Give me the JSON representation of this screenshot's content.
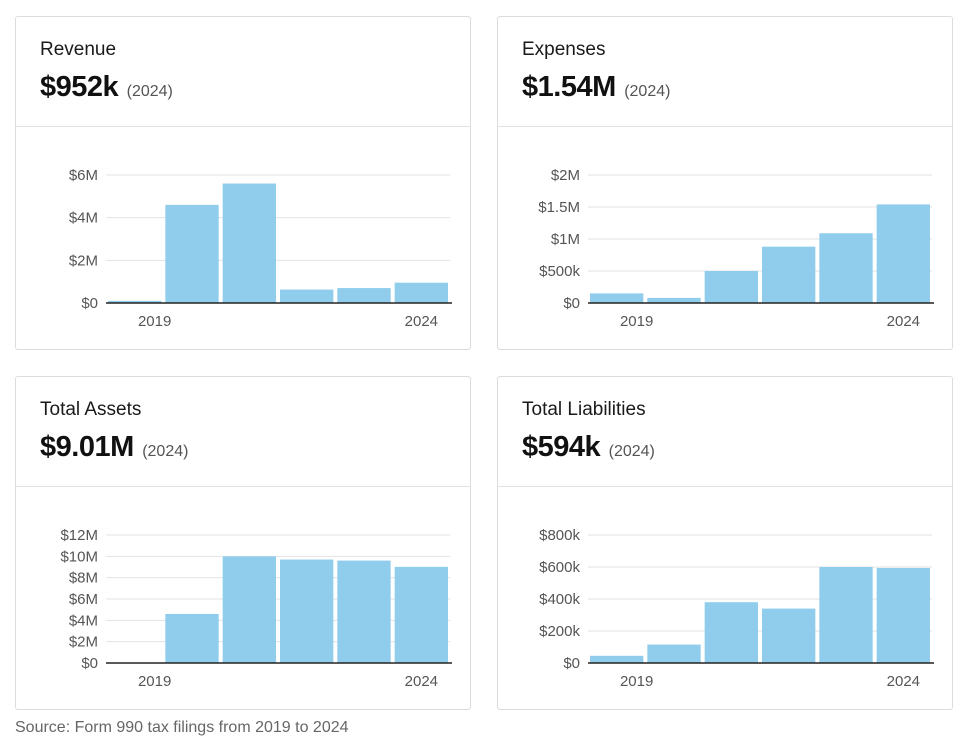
{
  "cards": [
    {
      "title": "Revenue",
      "value": "$952k",
      "year": "(2024)"
    },
    {
      "title": "Expenses",
      "value": "$1.54M",
      "year": "(2024)"
    },
    {
      "title": "Total Assets",
      "value": "$9.01M",
      "year": "(2024)"
    },
    {
      "title": "Total Liabilities",
      "value": "$594k",
      "year": "(2024)"
    }
  ],
  "source": "Source: Form 990 tax filings from 2019 to 2024",
  "colors": {
    "bar": "#90cdec",
    "grid": "#e3e3e3",
    "axis": "#222222",
    "tick": "#555555"
  },
  "chart_data": [
    {
      "type": "bar",
      "title": "Revenue",
      "categories": [
        "2019",
        "2020",
        "2021",
        "2022",
        "2023",
        "2024"
      ],
      "values": [
        100000,
        4600000,
        5600000,
        630000,
        700000,
        952000
      ],
      "ylim": [
        0,
        6000000
      ],
      "yticks": [
        0,
        2000000,
        4000000,
        6000000
      ],
      "ytick_labels": [
        "$0",
        "$2M",
        "$4M",
        "$6M"
      ],
      "xtick_labels": [
        "2019",
        "2024"
      ],
      "grid": true
    },
    {
      "type": "bar",
      "title": "Expenses",
      "categories": [
        "2019",
        "2020",
        "2021",
        "2022",
        "2023",
        "2024"
      ],
      "values": [
        150000,
        80000,
        500000,
        880000,
        1090000,
        1540000
      ],
      "ylim": [
        0,
        2000000
      ],
      "yticks": [
        0,
        500000,
        1000000,
        1500000,
        2000000
      ],
      "ytick_labels": [
        "$0",
        "$500k",
        "$1M",
        "$1.5M",
        "$2M"
      ],
      "xtick_labels": [
        "2019",
        "2024"
      ],
      "grid": true
    },
    {
      "type": "bar",
      "title": "Total Assets",
      "categories": [
        "2019",
        "2020",
        "2021",
        "2022",
        "2023",
        "2024"
      ],
      "values": [
        0,
        4600000,
        10000000,
        9700000,
        9600000,
        9010000
      ],
      "ylim": [
        0,
        12000000
      ],
      "yticks": [
        0,
        2000000,
        4000000,
        6000000,
        8000000,
        10000000,
        12000000
      ],
      "ytick_labels": [
        "$0",
        "$2M",
        "$4M",
        "$6M",
        "$8M",
        "$10M",
        "$12M"
      ],
      "xtick_labels": [
        "2019",
        "2024"
      ],
      "grid": true
    },
    {
      "type": "bar",
      "title": "Total Liabilities",
      "categories": [
        "2019",
        "2020",
        "2021",
        "2022",
        "2023",
        "2024"
      ],
      "values": [
        45000,
        115000,
        380000,
        340000,
        600000,
        594000
      ],
      "ylim": [
        0,
        800000
      ],
      "yticks": [
        0,
        200000,
        400000,
        600000,
        800000
      ],
      "ytick_labels": [
        "$0",
        "$200k",
        "$400k",
        "$600k",
        "$800k"
      ],
      "xtick_labels": [
        "2019",
        "2024"
      ],
      "grid": true
    }
  ]
}
